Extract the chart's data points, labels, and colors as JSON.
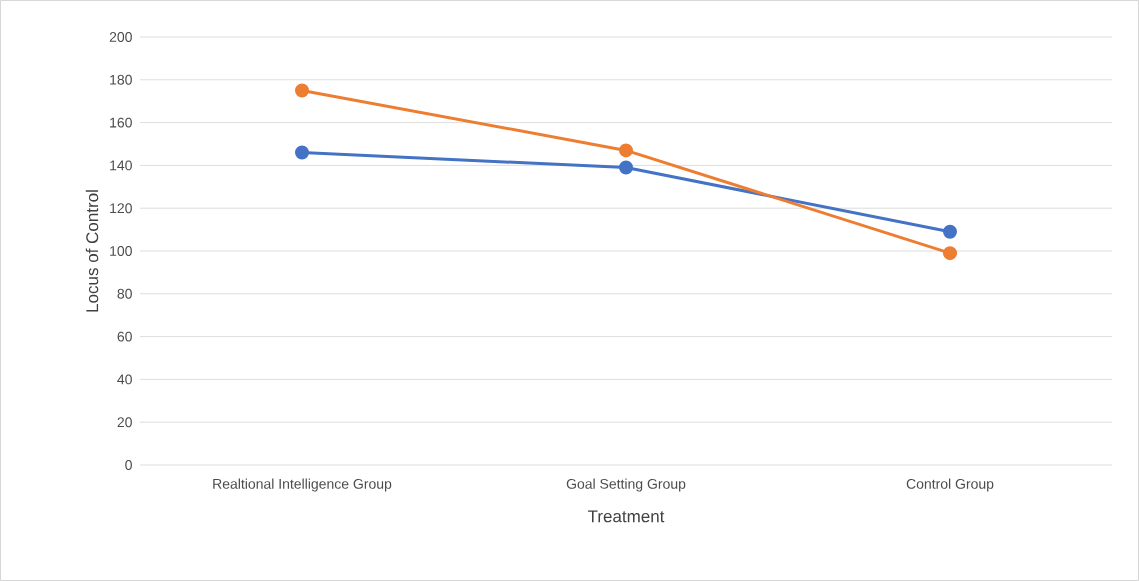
{
  "chart_data": {
    "type": "line",
    "xlabel": "Treatment",
    "ylabel": "Locus of Control",
    "categories": [
      "Realtional Intelligence Group",
      "Goal Setting Group",
      "Control Group"
    ],
    "series": [
      {
        "color": "#4472c4",
        "values": [
          146,
          139,
          109
        ]
      },
      {
        "color": "#ed7d31",
        "values": [
          175,
          147,
          99
        ]
      }
    ],
    "ylim": [
      0,
      200
    ],
    "yticks": [
      0,
      20,
      40,
      60,
      80,
      100,
      120,
      140,
      160,
      180,
      200
    ],
    "grid": "y",
    "marker": "circle",
    "line_style": "solid"
  }
}
